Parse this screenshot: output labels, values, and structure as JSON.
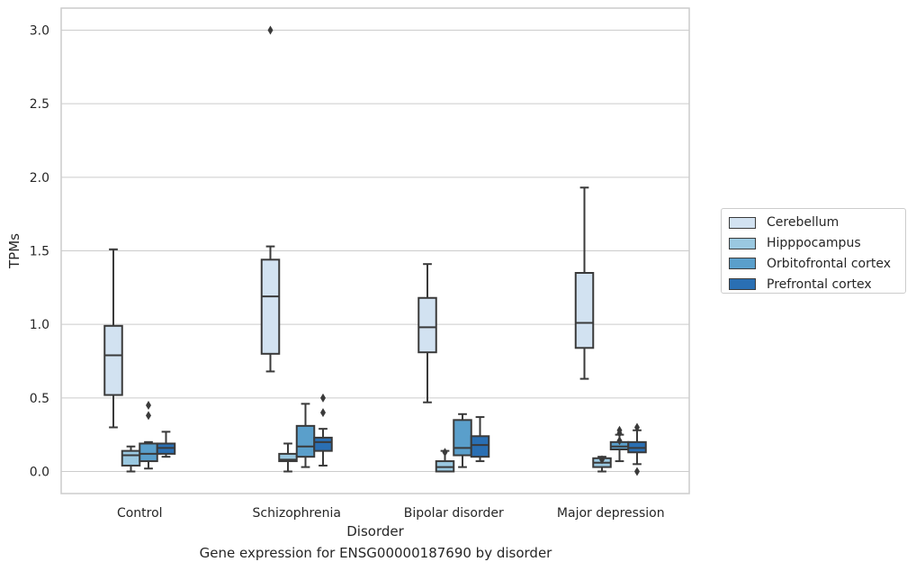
{
  "chart_data": {
    "type": "box",
    "title": "",
    "caption": "Gene expression for ENSG00000187690 by disorder",
    "xlabel": "Disorder",
    "ylabel": "TPMs",
    "ylim": [
      -0.15,
      3.15
    ],
    "yticks": [
      "0.0",
      "0.5",
      "1.0",
      "1.5",
      "2.0",
      "2.5",
      "3.0"
    ],
    "grid": "horizontal",
    "legend_position": "right",
    "categories": [
      "Control",
      "Schizophrenia",
      "Bipolar disorder",
      "Major depression"
    ],
    "series": [
      {
        "name": "Cerebellum",
        "color": "#d2e2f1",
        "boxes": [
          {
            "whislo": 0.3,
            "q1": 0.52,
            "med": 0.79,
            "q3": 0.99,
            "whishi": 1.51,
            "fliers": []
          },
          {
            "whislo": 0.68,
            "q1": 0.8,
            "med": 1.19,
            "q3": 1.44,
            "whishi": 1.53,
            "fliers": [
              3.0
            ]
          },
          {
            "whislo": 0.47,
            "q1": 0.81,
            "med": 0.98,
            "q3": 1.18,
            "whishi": 1.41,
            "fliers": []
          },
          {
            "whislo": 0.63,
            "q1": 0.84,
            "med": 1.01,
            "q3": 1.35,
            "whishi": 1.93,
            "fliers": []
          }
        ]
      },
      {
        "name": "Hipppocampus",
        "color": "#9ac8e0",
        "boxes": [
          {
            "whislo": 0.0,
            "q1": 0.04,
            "med": 0.11,
            "q3": 0.14,
            "whishi": 0.17,
            "fliers": []
          },
          {
            "whislo": 0.0,
            "q1": 0.07,
            "med": 0.08,
            "q3": 0.12,
            "whishi": 0.19,
            "fliers": []
          },
          {
            "whislo": 0.0,
            "q1": 0.0,
            "med": 0.03,
            "q3": 0.07,
            "whishi": 0.14,
            "fliers": [
              0.13
            ]
          },
          {
            "whislo": 0.0,
            "q1": 0.03,
            "med": 0.06,
            "q3": 0.09,
            "whishi": 0.1,
            "fliers": [
              0.08
            ]
          }
        ]
      },
      {
        "name": "Orbitofrontal cortex",
        "color": "#5a9fcb",
        "boxes": [
          {
            "whislo": 0.02,
            "q1": 0.07,
            "med": 0.12,
            "q3": 0.19,
            "whishi": 0.2,
            "fliers": [
              0.38,
              0.45
            ]
          },
          {
            "whislo": 0.03,
            "q1": 0.1,
            "med": 0.17,
            "q3": 0.31,
            "whishi": 0.46,
            "fliers": []
          },
          {
            "whislo": 0.03,
            "q1": 0.11,
            "med": 0.16,
            "q3": 0.35,
            "whishi": 0.39,
            "fliers": []
          },
          {
            "whislo": 0.07,
            "q1": 0.15,
            "med": 0.17,
            "q3": 0.2,
            "whishi": 0.25,
            "fliers": [
              0.21,
              0.26,
              0.28
            ]
          }
        ]
      },
      {
        "name": "Prefrontal cortex",
        "color": "#2a6fb3",
        "boxes": [
          {
            "whislo": 0.1,
            "q1": 0.12,
            "med": 0.16,
            "q3": 0.19,
            "whishi": 0.27,
            "fliers": []
          },
          {
            "whislo": 0.04,
            "q1": 0.14,
            "med": 0.2,
            "q3": 0.23,
            "whishi": 0.29,
            "fliers": [
              0.4,
              0.5
            ]
          },
          {
            "whislo": 0.07,
            "q1": 0.1,
            "med": 0.18,
            "q3": 0.24,
            "whishi": 0.37,
            "fliers": []
          },
          {
            "whislo": 0.05,
            "q1": 0.13,
            "med": 0.16,
            "q3": 0.2,
            "whishi": 0.28,
            "fliers": [
              0.0,
              0.3
            ]
          }
        ]
      }
    ]
  }
}
